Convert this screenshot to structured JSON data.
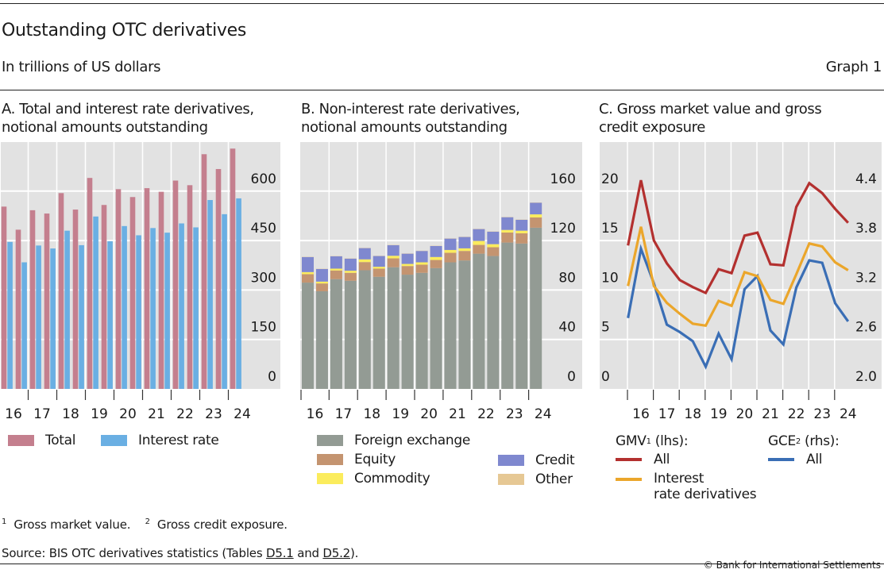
{
  "header": {
    "title": "Outstanding OTC derivatives",
    "subtitle": "In trillions of US dollars",
    "graph_number": "Graph 1"
  },
  "panels": {
    "a": {
      "title_line1": "A. Total and interest rate derivatives,",
      "title_line2": "notional amounts outstanding"
    },
    "b": {
      "title_line1": "B. Non-interest rate derivatives,",
      "title_line2": "notional amounts outstanding"
    },
    "c": {
      "title_line1": "C. Gross market value and gross",
      "title_line2": "credit exposure"
    }
  },
  "legends": {
    "a": [
      {
        "label": "Total"
      },
      {
        "label": "Interest rate"
      }
    ],
    "b": [
      {
        "label": "Foreign exchange"
      },
      {
        "label": "Equity"
      },
      {
        "label": "Commodity"
      },
      {
        "label": "Credit"
      },
      {
        "label": "Other"
      }
    ],
    "c": {
      "gmv_header": "GMV",
      "gmv_sup": "1",
      "gmv_suffix": " (lhs):",
      "gce_header": "GCE",
      "gce_sup": "2",
      "gce_suffix": " (rhs):",
      "gmv_all": "All",
      "gmv_ir_line1": "Interest",
      "gmv_ir_line2": "rate derivatives",
      "gce_all": "All"
    }
  },
  "footnotes": {
    "n1_mark": "1",
    "n1_text": "Gross market value.",
    "n2_mark": "2",
    "n2_text": "Gross credit exposure.",
    "source_prefix": "Source: BIS OTC derivatives statistics (Tables ",
    "source_link1": "D5.1",
    "source_mid": " and ",
    "source_link2": "D5.2",
    "source_suffix": ").",
    "copyright": "© Bank for International Settlements"
  },
  "colors": {
    "total": "#c47f8e",
    "interest_rate": "#6aafe3",
    "fx": "#939b94",
    "equity": "#c49470",
    "commodity": "#fbec5d",
    "credit": "#7f88cf",
    "other": "#e6c894",
    "gmv_all": "#b3302f",
    "gmv_ir": "#eba62b",
    "gce_all": "#3a6eb5",
    "plot_bg": "#e2e2e2"
  },
  "chart_data": [
    {
      "type": "bar",
      "panel": "A",
      "title": "A. Total and interest rate derivatives, notional amounts outstanding",
      "xlabel": "",
      "ylabel": "",
      "x_year_labels": [
        "16",
        "17",
        "18",
        "19",
        "20",
        "21",
        "22",
        "23",
        "24"
      ],
      "categories": [
        "2016H1",
        "2016H2",
        "2017H1",
        "2017H2",
        "2018H1",
        "2018H2",
        "2019H1",
        "2019H2",
        "2020H1",
        "2020H2",
        "2021H1",
        "2021H2",
        "2022H1",
        "2022H2",
        "2023H1",
        "2023H2",
        "2024H1"
      ],
      "series": [
        {
          "name": "Total",
          "color_key": "total",
          "values": [
            553,
            483,
            542,
            532,
            594,
            544,
            640,
            558,
            606,
            582,
            609,
            598,
            632,
            618,
            712,
            667,
            729
          ]
        },
        {
          "name": "Interest rate",
          "color_key": "interest_rate",
          "values": [
            446,
            384,
            435,
            426,
            480,
            436,
            523,
            448,
            494,
            466,
            488,
            474,
            502,
            490,
            573,
            530,
            578
          ]
        }
      ],
      "yaxis_side": "right",
      "yticks": [
        0,
        150,
        300,
        450,
        600
      ],
      "ylim": [
        0,
        750
      ],
      "grid": true,
      "legend_position": "bottom"
    },
    {
      "type": "bar",
      "stacked": true,
      "panel": "B",
      "title": "B. Non-interest rate derivatives, notional amounts outstanding",
      "xlabel": "",
      "ylabel": "",
      "x_year_labels": [
        "16",
        "17",
        "18",
        "19",
        "20",
        "21",
        "22",
        "23",
        "24"
      ],
      "categories": [
        "2016H1",
        "2016H2",
        "2017H1",
        "2017H2",
        "2018H1",
        "2018H2",
        "2019H1",
        "2019H2",
        "2020H1",
        "2020H2",
        "2021H1",
        "2021H2",
        "2022H1",
        "2022H2",
        "2023H1",
        "2023H2",
        "2024H1"
      ],
      "series": [
        {
          "name": "Foreign exchange",
          "color_key": "fx",
          "values": [
            86,
            79,
            88.8,
            87.5,
            96,
            90.7,
            98.4,
            92.4,
            93.9,
            97.7,
            102.4,
            103.9,
            109.4,
            107.5,
            118.4,
            117.6,
            130.4
          ]
        },
        {
          "name": "Equity",
          "color_key": "equity",
          "values": [
            6.8,
            6.3,
            7,
            6.4,
            6.6,
            6.6,
            7.2,
            7,
            6.6,
            6.6,
            7.7,
            7.7,
            7.1,
            7.1,
            8.1,
            8.3,
            8.3
          ]
        },
        {
          "name": "Commodity",
          "color_key": "commodity",
          "values": [
            1.7,
            1.5,
            1.5,
            1.7,
            2.2,
            1.5,
            2.1,
            1.7,
            1.9,
            2.4,
            2.3,
            2.1,
            3.2,
            2.5,
            2.1,
            2.1,
            2.5
          ]
        },
        {
          "name": "Credit",
          "color_key": "credit",
          "values": [
            12.2,
            10.2,
            10,
            9.8,
            9.1,
            8.7,
            8.6,
            8.3,
            9.2,
            8.9,
            9.2,
            9.2,
            9.6,
            10.1,
            10.3,
            8.8,
            9.4
          ]
        },
        {
          "name": "Other",
          "color_key": "other",
          "values": [
            0.2,
            0.2,
            0.2,
            0.2,
            0.2,
            0.2,
            0.2,
            0.2,
            0.2,
            0.2,
            0.2,
            0.2,
            0.2,
            0.2,
            0.2,
            0.2,
            0.2
          ]
        }
      ],
      "yaxis_side": "right",
      "yticks": [
        0,
        40,
        80,
        120,
        160
      ],
      "ylim": [
        0,
        200
      ],
      "grid": true,
      "legend_position": "bottom"
    },
    {
      "type": "line",
      "panel": "C",
      "title": "C. Gross market value and gross credit exposure",
      "xlabel": "",
      "ylabel": "",
      "x_year_labels": [
        "16",
        "17",
        "18",
        "19",
        "20",
        "21",
        "22",
        "23",
        "24"
      ],
      "x": [
        "2015H2",
        "2016H1",
        "2016H2",
        "2017H1",
        "2017H2",
        "2018H1",
        "2018H2",
        "2019H1",
        "2019H2",
        "2020H1",
        "2020H2",
        "2021H1",
        "2021H2",
        "2022H1",
        "2022H2",
        "2023H1",
        "2023H2",
        "2024H1"
      ],
      "series": [
        {
          "name": "GMV All",
          "axis": "lhs",
          "color_key": "gmv_all",
          "values": [
            14.5,
            21.1,
            15.0,
            12.7,
            11.0,
            10.3,
            9.7,
            12.1,
            11.7,
            15.5,
            15.8,
            12.6,
            12.5,
            18.4,
            20.8,
            19.8,
            18.2,
            16.8
          ]
        },
        {
          "name": "GMV Interest rate derivatives",
          "axis": "lhs",
          "color_key": "gmv_ir",
          "values": [
            10.4,
            16.4,
            10.4,
            8.7,
            7.6,
            6.6,
            6.4,
            8.9,
            8.4,
            11.8,
            11.4,
            9.0,
            8.6,
            11.6,
            14.7,
            14.4,
            12.8,
            12.0
          ]
        },
        {
          "name": "GCE All",
          "axis": "rhs",
          "color_key": "gce_all",
          "values": [
            2.86,
            3.7,
            3.28,
            2.78,
            2.69,
            2.58,
            2.27,
            2.67,
            2.36,
            3.21,
            3.37,
            2.71,
            2.54,
            3.23,
            3.56,
            3.53,
            3.04,
            2.82
          ]
        }
      ],
      "yticks_lhs": [
        0,
        5,
        10,
        15,
        20
      ],
      "yticks_rhs": [
        "2.0",
        "2.6",
        "3.2",
        "3.8",
        "4.4"
      ],
      "ylim_lhs": [
        0,
        25
      ],
      "ylim_rhs": [
        2.0,
        5.0
      ],
      "grid": true,
      "legend_position": "bottom"
    }
  ]
}
